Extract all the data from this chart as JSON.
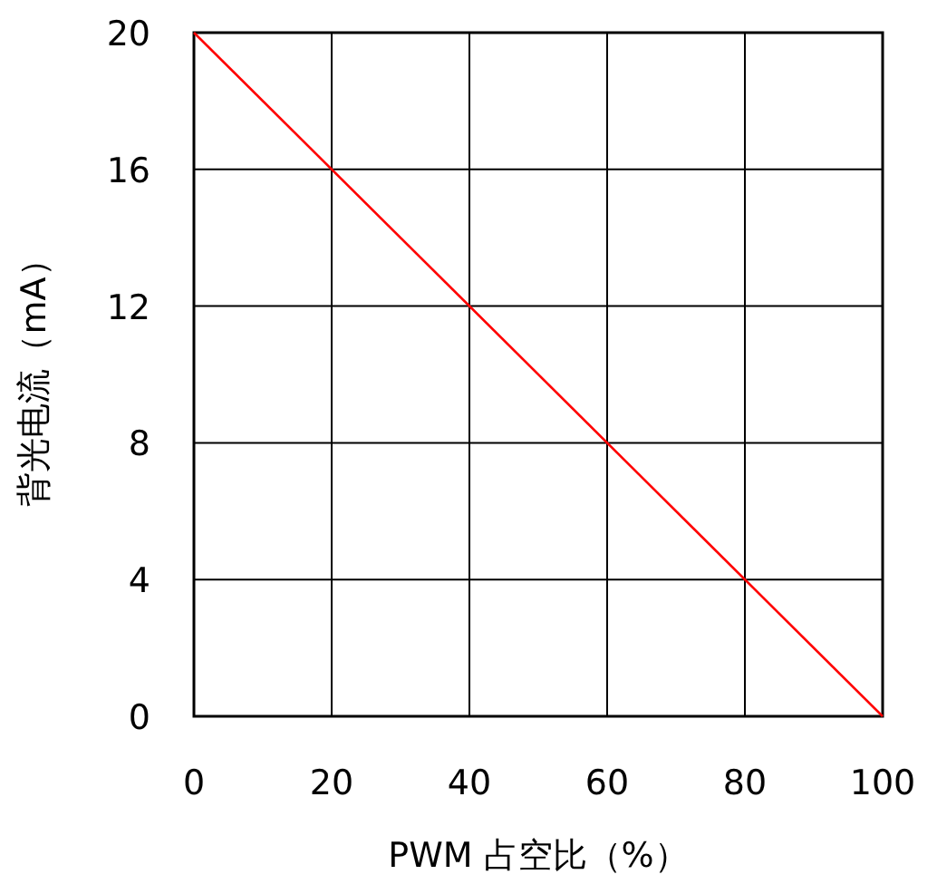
{
  "chart_data": {
    "type": "line",
    "xlabel": "PWM 占空比（%）",
    "ylabel": "背光电流（mA）",
    "x": [
      0,
      100
    ],
    "series": [
      {
        "color": "#ff0000",
        "values": [
          20,
          0
        ]
      }
    ],
    "xlim": [
      0,
      100
    ],
    "ylim": [
      0,
      20
    ],
    "xticks": [
      0,
      20,
      40,
      60,
      80,
      100
    ],
    "yticks": [
      0,
      4,
      8,
      12,
      16,
      20
    ],
    "grid": true,
    "marker": "none",
    "line_style": "solid"
  }
}
